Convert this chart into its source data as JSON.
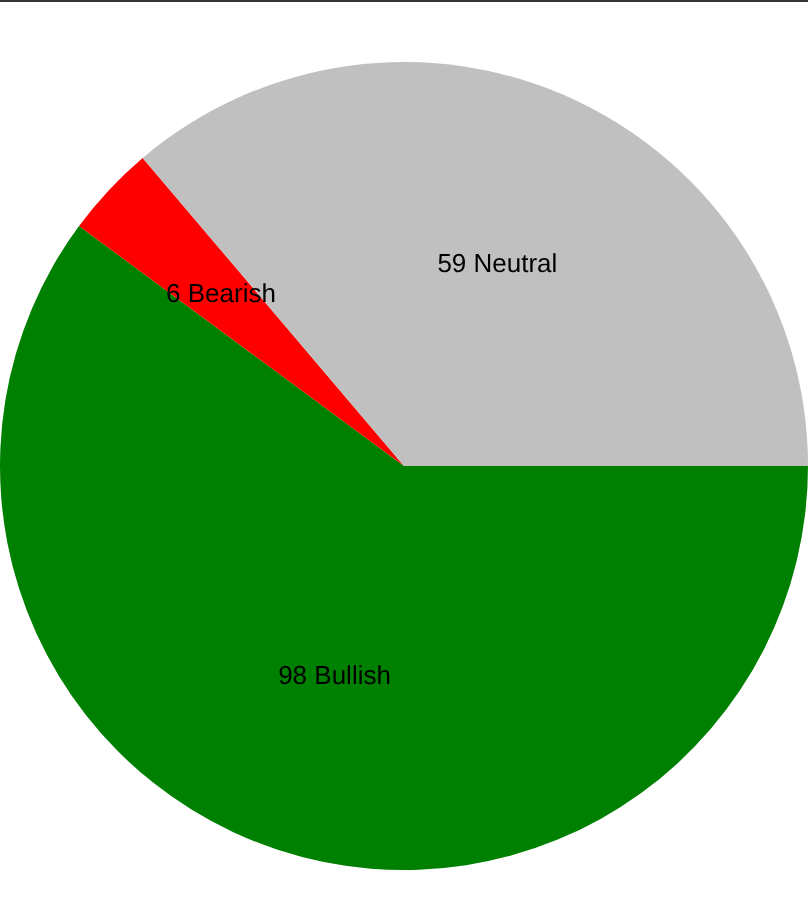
{
  "chart_data": {
    "type": "pie",
    "categories": [
      "Bullish",
      "Bearish",
      "Neutral"
    ],
    "values": [
      98,
      6,
      59
    ],
    "colors": [
      "#008000",
      "#ff0000",
      "#c0c0c0"
    ],
    "data_labels": true,
    "legend": false
  }
}
